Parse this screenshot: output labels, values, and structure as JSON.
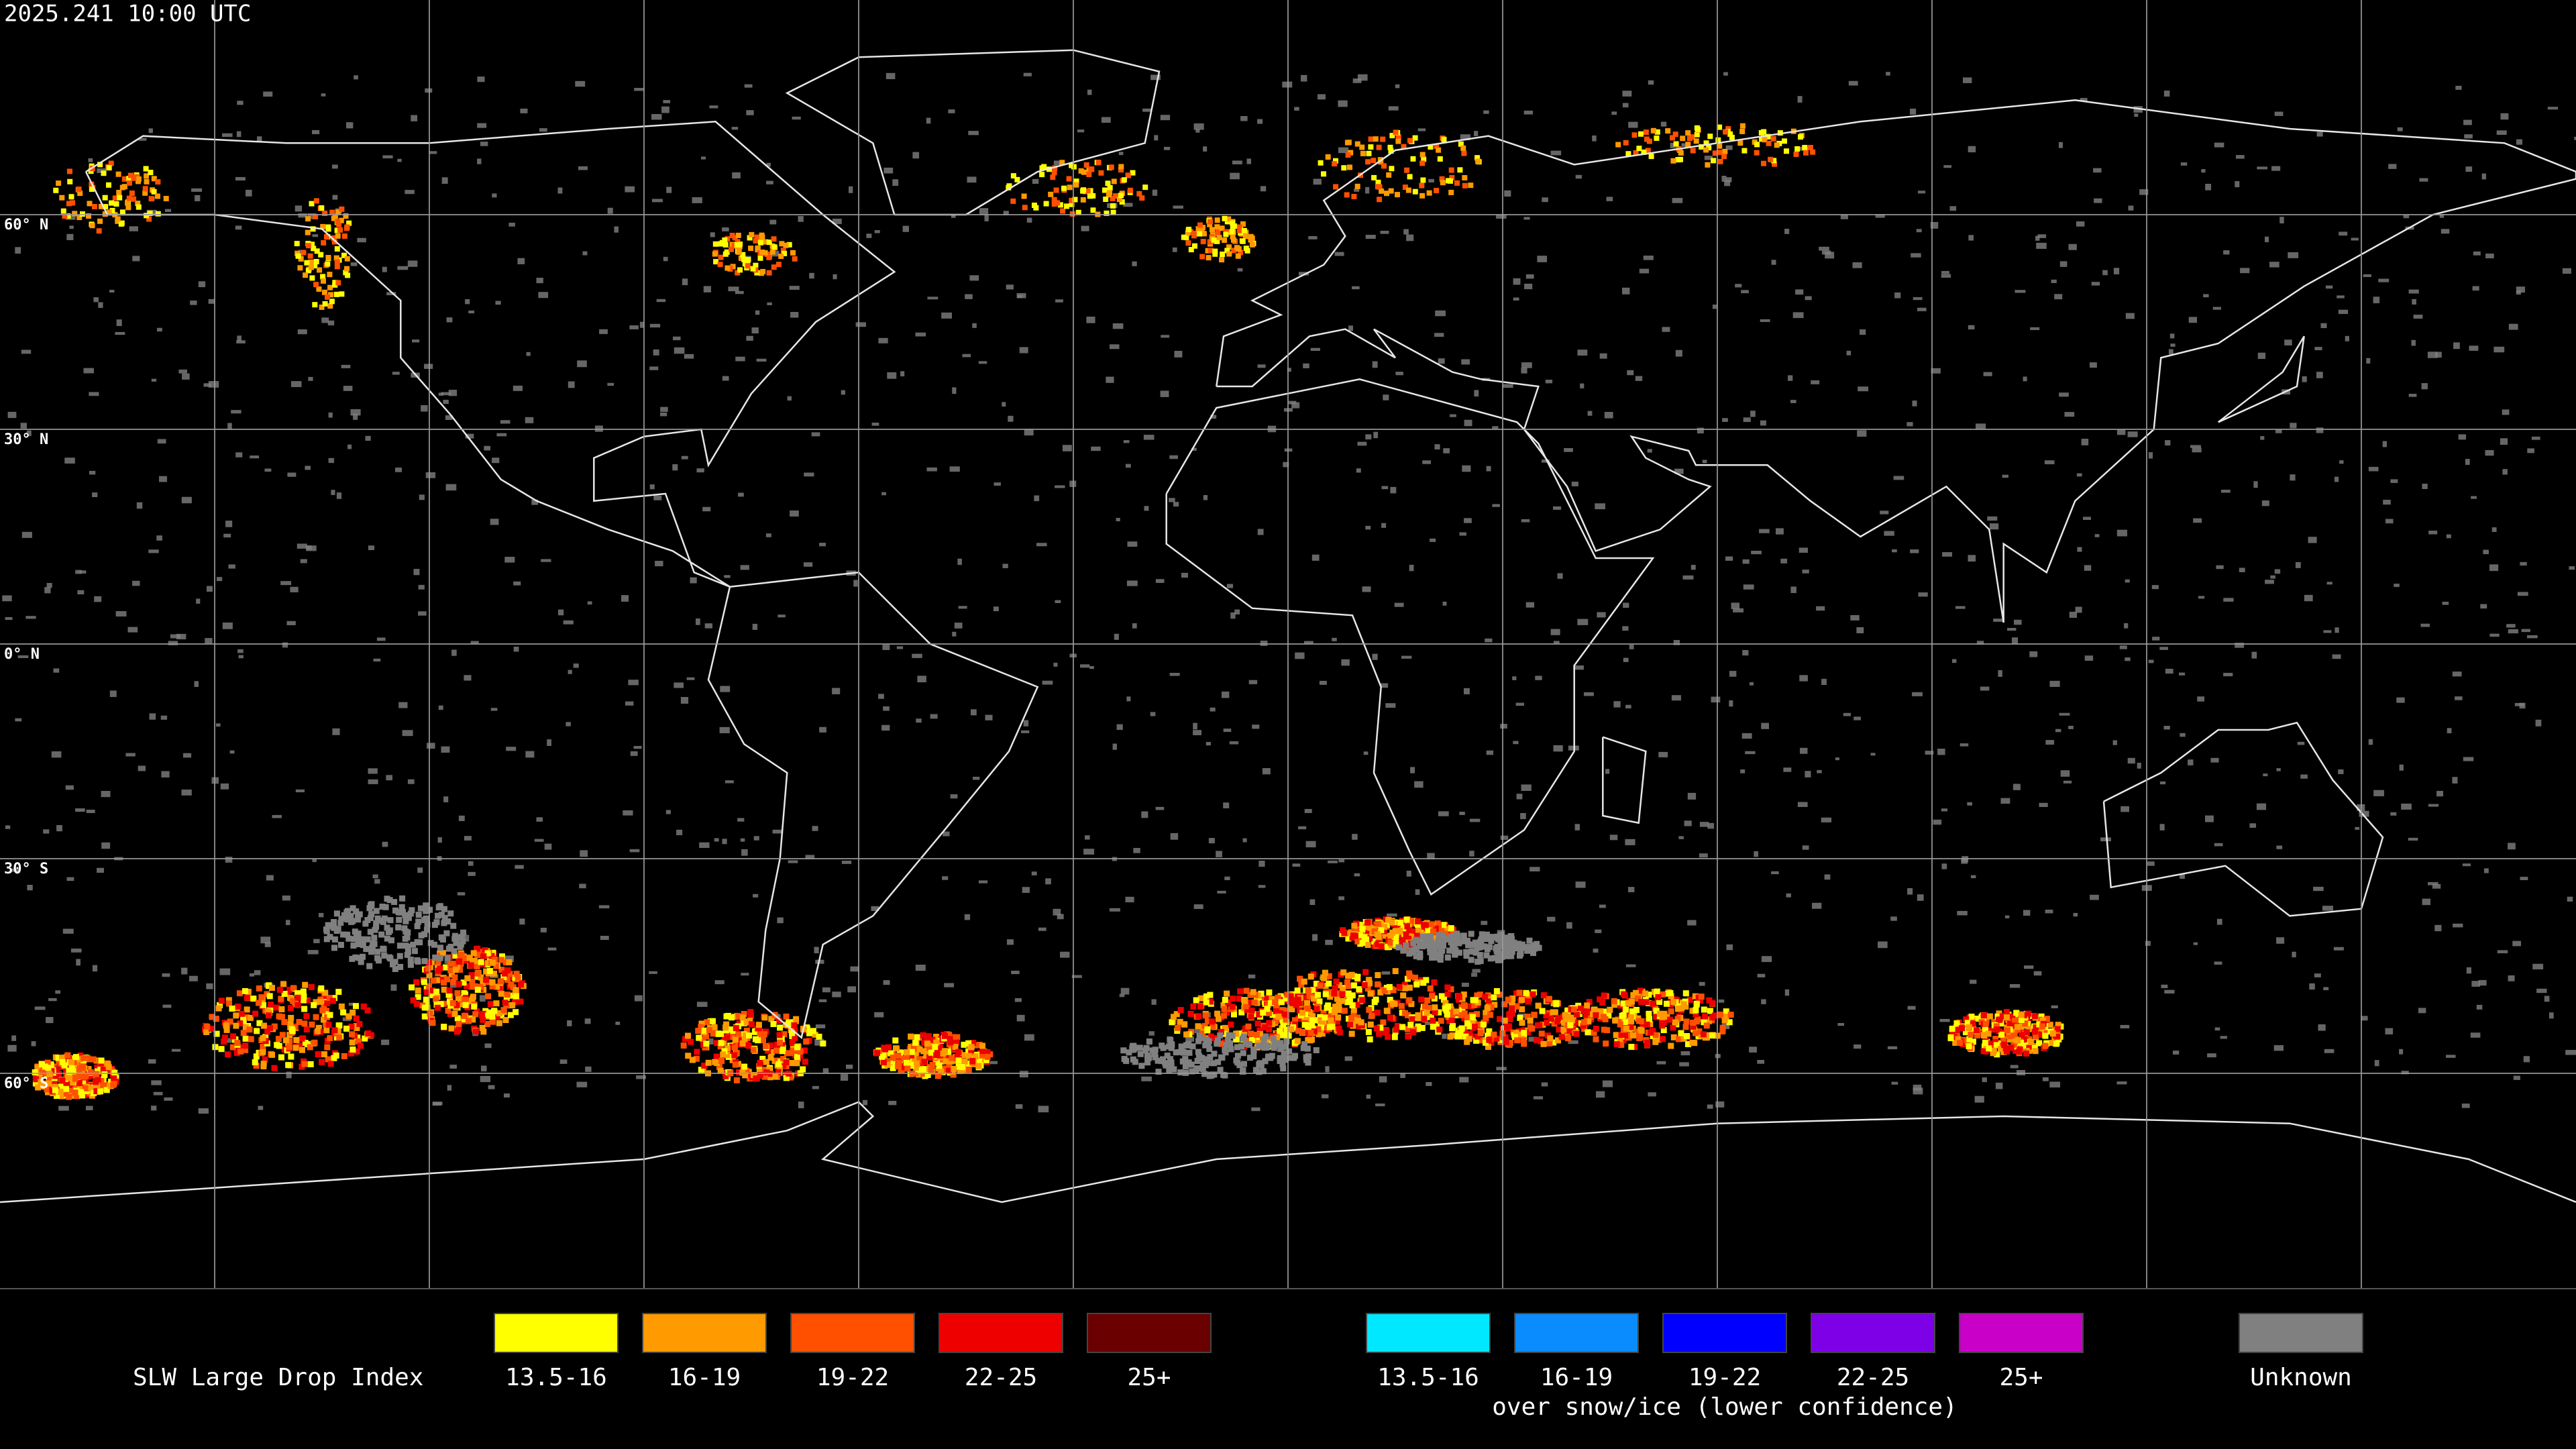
{
  "header": {
    "timestamp": "2025.241 10:00 UTC"
  },
  "map": {
    "lat_labels": [
      "60° N",
      "30° N",
      "0° N",
      "30° S",
      "60° S"
    ]
  },
  "legend": {
    "title": "SLW Large Drop Index",
    "groups": [
      {
        "items": [
          {
            "label": "13.5-16",
            "color": "#ffff00"
          },
          {
            "label": "16-19",
            "color": "#ff9a00"
          },
          {
            "label": "19-22",
            "color": "#ff5000"
          },
          {
            "label": "22-25",
            "color": "#ee0000"
          },
          {
            "label": "25+",
            "color": "#6a0000"
          }
        ]
      },
      {
        "items": [
          {
            "label": "13.5-16",
            "color": "#00e8ff"
          },
          {
            "label": "16-19",
            "color": "#0a8cff"
          },
          {
            "label": "19-22",
            "color": "#0000ff"
          },
          {
            "label": "22-25",
            "color": "#7d00e6"
          },
          {
            "label": "25+",
            "color": "#c800c8"
          }
        ],
        "caption": "over snow/ice (lower confidence)"
      },
      {
        "items": [
          {
            "label": "Unknown",
            "color": "#808080"
          }
        ]
      }
    ]
  }
}
